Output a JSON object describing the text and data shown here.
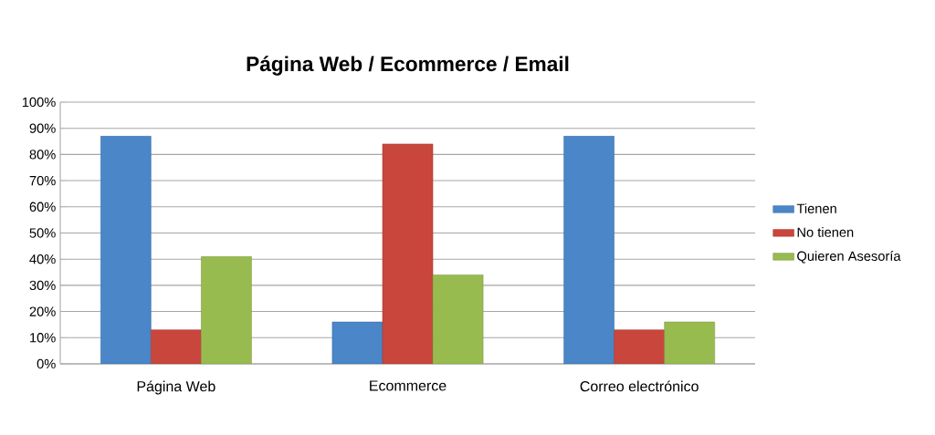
{
  "chart_data": {
    "type": "bar",
    "title": "Página Web / Ecommerce / Email",
    "categories": [
      "Página Web",
      "Ecommerce",
      "Correo electrónico"
    ],
    "series": [
      {
        "name": "Tienen",
        "color": "#4a86c8",
        "values": [
          87,
          16,
          87
        ]
      },
      {
        "name": "No tienen",
        "color": "#c9463d",
        "values": [
          13,
          84,
          13
        ]
      },
      {
        "name": "Quieren Asesoría",
        "color": "#98bb50",
        "values": [
          41,
          34,
          16
        ]
      }
    ],
    "ylim": [
      0,
      100
    ],
    "yticks": [
      {
        "value": 0,
        "label": "0%"
      },
      {
        "value": 10,
        "label": "10%"
      },
      {
        "value": 20,
        "label": "20%"
      },
      {
        "value": 30,
        "label": "30%"
      },
      {
        "value": 40,
        "label": "40%"
      },
      {
        "value": 50,
        "label": "50%"
      },
      {
        "value": 60,
        "label": "60%"
      },
      {
        "value": 70,
        "label": "70%"
      },
      {
        "value": 80,
        "label": "80%"
      },
      {
        "value": 90,
        "label": "90%"
      },
      {
        "value": 100,
        "label": "100%"
      }
    ],
    "grid": "y",
    "legend": "right"
  }
}
